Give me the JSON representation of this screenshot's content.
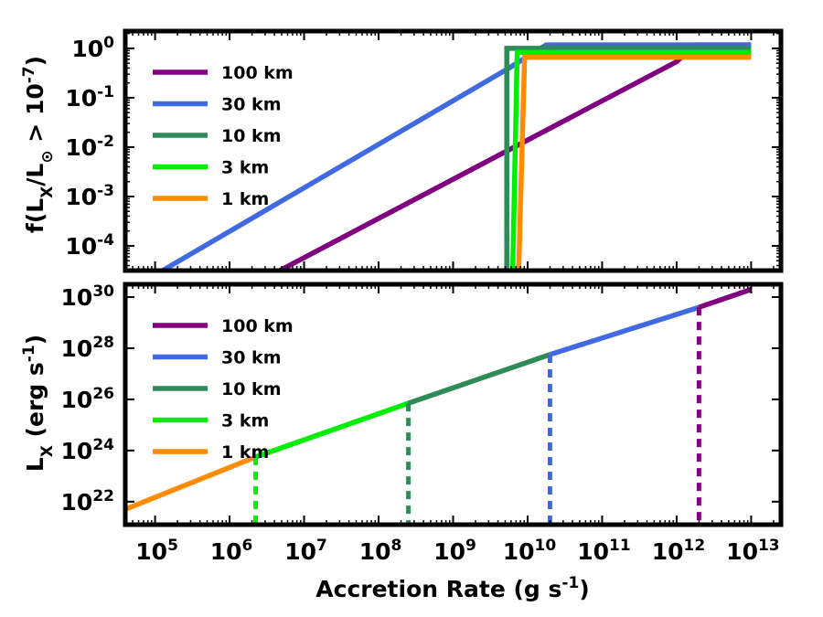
{
  "chart_data": [
    {
      "type": "line",
      "panel": "top",
      "ylabel": "f(L_X/L_⊙ > 10^-7)",
      "xscale": "log",
      "yscale": "log",
      "xlim_log10": [
        4.6,
        13.4
      ],
      "ylim_log10": [
        -4.5,
        0.35
      ],
      "y_ticks": [
        {
          "base": "10",
          "exp": "0"
        },
        {
          "base": "10",
          "exp": "-1"
        },
        {
          "base": "10",
          "exp": "-2"
        },
        {
          "base": "10",
          "exp": "-3"
        },
        {
          "base": "10",
          "exp": "-4"
        }
      ],
      "y_tick_values_log10": [
        0,
        -1,
        -2,
        -3,
        -4
      ],
      "legend_location": "upper-left",
      "legend": [
        "100 km",
        "30 km",
        "10 km",
        "3 km",
        "1 km"
      ],
      "series": [
        {
          "name": "100 km",
          "color": "#800080",
          "x_log10": [
            6.67,
            12.0,
            12.25,
            13.0
          ],
          "y_log10": [
            -4.5,
            -0.27,
            0.07,
            0.07
          ]
        },
        {
          "name": "30 km",
          "color": "#4169e1",
          "x_log10": [
            5.1,
            9.75,
            10.25,
            13.0
          ],
          "y_log10": [
            -4.5,
            -0.4,
            0.07,
            0.07
          ]
        },
        {
          "name": "10 km",
          "color": "#2e8b57",
          "x_log10": [
            9.72,
            9.72,
            13.0
          ],
          "y_log10": [
            -4.5,
            0.0,
            0.0
          ]
        },
        {
          "name": "3 km",
          "color": "#00ee00",
          "x_log10": [
            9.8,
            9.86,
            13.0
          ],
          "y_log10": [
            -4.5,
            -0.08,
            -0.08
          ]
        },
        {
          "name": "1 km",
          "color": "#ff8c00",
          "x_log10": [
            9.88,
            9.96,
            13.0
          ],
          "y_log10": [
            -4.5,
            -0.18,
            -0.18
          ]
        }
      ]
    },
    {
      "type": "line",
      "panel": "bottom",
      "ylabel": "L_X (erg s^-1)",
      "xlabel": "Accretion Rate (g s^-1)",
      "xscale": "log",
      "yscale": "log",
      "xlim_log10": [
        4.6,
        13.4
      ],
      "ylim_log10": [
        21.1,
        30.5
      ],
      "x_ticks": [
        {
          "base": "10",
          "exp": "5"
        },
        {
          "base": "10",
          "exp": "6"
        },
        {
          "base": "10",
          "exp": "7"
        },
        {
          "base": "10",
          "exp": "8"
        },
        {
          "base": "10",
          "exp": "9"
        },
        {
          "base": "10",
          "exp": "10"
        },
        {
          "base": "10",
          "exp": "11"
        },
        {
          "base": "10",
          "exp": "12"
        },
        {
          "base": "10",
          "exp": "13"
        }
      ],
      "x_tick_values_log10": [
        5,
        6,
        7,
        8,
        9,
        10,
        11,
        12,
        13
      ],
      "y_ticks": [
        {
          "base": "10",
          "exp": "30"
        },
        {
          "base": "10",
          "exp": "28"
        },
        {
          "base": "10",
          "exp": "26"
        },
        {
          "base": "10",
          "exp": "24"
        },
        {
          "base": "10",
          "exp": "22"
        }
      ],
      "y_tick_values_log10": [
        30,
        28,
        26,
        24,
        22
      ],
      "legend_location": "upper-left",
      "legend": [
        "100 km",
        "30 km",
        "10 km",
        "3 km",
        "1 km"
      ],
      "series": [
        {
          "name": "1 km",
          "color": "#ff8c00",
          "x_log10": [
            4.6,
            6.35
          ],
          "y_log10": [
            21.7,
            23.75
          ]
        },
        {
          "name": "3 km",
          "color": "#00ee00",
          "x_log10": [
            6.35,
            8.4
          ],
          "y_log10": [
            23.75,
            25.85
          ]
        },
        {
          "name": "10 km",
          "color": "#2e8b57",
          "x_log10": [
            8.4,
            10.3
          ],
          "y_log10": [
            25.85,
            27.75
          ]
        },
        {
          "name": "30 km",
          "color": "#4169e1",
          "x_log10": [
            10.3,
            12.3
          ],
          "y_log10": [
            27.75,
            29.6
          ]
        },
        {
          "name": "100 km",
          "color": "#800080",
          "x_log10": [
            12.3,
            13.0
          ],
          "y_log10": [
            29.6,
            30.3
          ]
        }
      ],
      "transition_markers": [
        {
          "color": "#00ee00",
          "x_log10": 6.35,
          "y_log10": 23.75
        },
        {
          "color": "#2e8b57",
          "x_log10": 8.4,
          "y_log10": 25.85
        },
        {
          "color": "#4169e1",
          "x_log10": 10.3,
          "y_log10": 27.75
        },
        {
          "color": "#800080",
          "x_log10": 12.3,
          "y_log10": 29.6
        }
      ]
    }
  ]
}
